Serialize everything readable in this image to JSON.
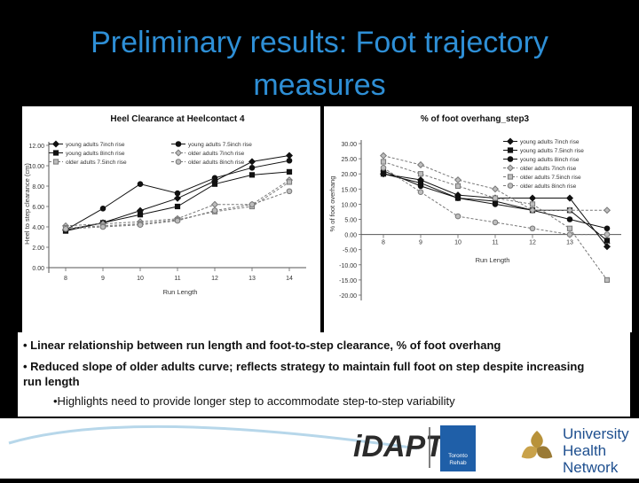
{
  "title": "Preliminary results: Foot trajectory measures",
  "chart_data": [
    {
      "type": "line",
      "title": "Heel Clearance at Heelcontact 4",
      "xlabel": "Run Length",
      "ylabel": "Heel to step clearance (cm)",
      "x": [
        8,
        9,
        10,
        11,
        12,
        13,
        14
      ],
      "ylim": [
        0,
        12
      ],
      "yticks": [
        "0.00",
        "2.00",
        "4.00",
        "6.00",
        "8.00",
        "10.00",
        "12.00"
      ],
      "legend_position": "top",
      "series": [
        {
          "name": "young adults 7inch rise",
          "marker": "diamond",
          "color": "#111111",
          "dash": false,
          "values": [
            3.7,
            4.4,
            5.6,
            6.8,
            8.5,
            10.4,
            11.0
          ]
        },
        {
          "name": "young adults 7.5inch rise",
          "marker": "circle",
          "color": "#111111",
          "dash": false,
          "values": [
            3.7,
            5.8,
            8.2,
            7.3,
            8.8,
            9.8,
            10.5
          ]
        },
        {
          "name": "young adults 8inch rise",
          "marker": "square",
          "color": "#111111",
          "dash": false,
          "values": [
            3.6,
            4.4,
            5.2,
            6.0,
            8.2,
            9.1,
            9.4
          ]
        },
        {
          "name": "older adults 7inch rise",
          "marker": "diamond",
          "color": "#777777",
          "dash": true,
          "values": [
            4.1,
            4.3,
            4.5,
            4.8,
            6.2,
            6.2,
            8.6
          ]
        },
        {
          "name": "older adults 7.5inch rise",
          "marker": "square",
          "color": "#777777",
          "dash": true,
          "values": [
            3.9,
            4.1,
            4.3,
            4.7,
            5.5,
            6.0,
            8.4
          ]
        },
        {
          "name": "older adults 8inch rise",
          "marker": "circle",
          "color": "#777777",
          "dash": true,
          "values": [
            3.8,
            4.0,
            4.2,
            4.6,
            5.6,
            6.2,
            7.5
          ]
        }
      ]
    },
    {
      "type": "line",
      "title": "% of foot overhang_step3",
      "xlabel": "Run Length",
      "ylabel": "% of foot overhang",
      "x": [
        8,
        9,
        10,
        11,
        12,
        13,
        14
      ],
      "ylim": [
        -20,
        30
      ],
      "yticks": [
        "30.00",
        "25.00",
        "20.00",
        "15.00",
        "10.00",
        "5.00",
        "0.00",
        "-5.00",
        "-10.00",
        "-15.00",
        "-20.00"
      ],
      "legend_position": "top-right",
      "series": [
        {
          "name": "young adults 7inch rise",
          "marker": "diamond",
          "color": "#111111",
          "dash": false,
          "values": [
            20,
            18,
            13,
            12,
            12,
            12,
            -4
          ]
        },
        {
          "name": "young adults 7.5inch rise",
          "marker": "square",
          "color": "#111111",
          "dash": false,
          "values": [
            20,
            17,
            12,
            11,
            8,
            8,
            -2
          ]
        },
        {
          "name": "young adults 8inch rise",
          "marker": "circle",
          "color": "#111111",
          "dash": false,
          "values": [
            21,
            16,
            12,
            10,
            8,
            5,
            2
          ]
        },
        {
          "name": "older adults 7inch rise",
          "marker": "diamond",
          "color": "#777777",
          "dash": true,
          "values": [
            26,
            23,
            18,
            15,
            8,
            8,
            8
          ]
        },
        {
          "name": "older adults 7.5inch rise",
          "marker": "square",
          "color": "#777777",
          "dash": true,
          "values": [
            24,
            20,
            16,
            12,
            10,
            2,
            -15
          ]
        },
        {
          "name": "older adults 8inch rise",
          "marker": "circle",
          "color": "#777777",
          "dash": true,
          "values": [
            22,
            14,
            6,
            4,
            2,
            0,
            0
          ]
        }
      ]
    }
  ],
  "bullets": {
    "b1": "• Linear relationship between run length and foot-to-step clearance, % of foot overhang",
    "b2": "• Reduced slope of older adults curve; reflects strategy to maintain full foot on step despite increasing run length",
    "b3": "•Highlights need to provide longer step to accommodate step-to-step variability"
  },
  "logos": {
    "idapt": "iDAPT",
    "toronto": "Toronto",
    "rehab": "Rehab",
    "uhn_1": "University",
    "uhn_2": "Health",
    "uhn_3": "Network",
    "toronto_color": "#1f5fa8",
    "uhn_color": "#1e4f8f",
    "uhn_gold": "#b8923a"
  }
}
